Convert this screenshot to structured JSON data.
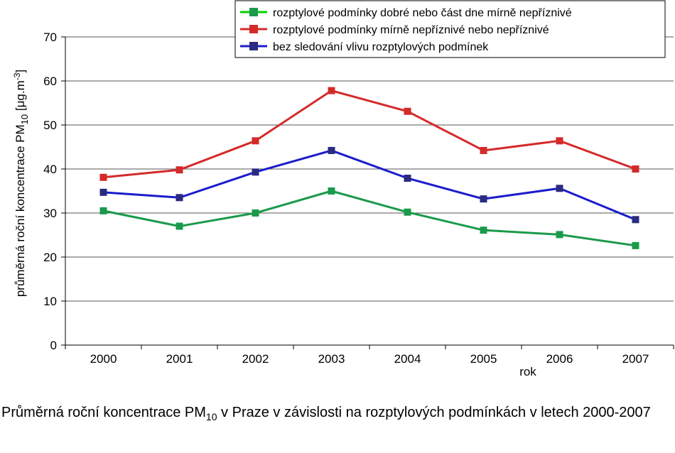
{
  "caption": {
    "before": "Průměrná roční koncentrace PM",
    "sub": "10",
    "after": " v Praze v závislosti na rozptylových podmínkách v letech 2000-2007"
  },
  "chart_data": {
    "type": "line",
    "categories": [
      "2000",
      "2001",
      "2002",
      "2003",
      "2004",
      "2005",
      "2006",
      "2007"
    ],
    "xlabel": "rok",
    "ylabel": {
      "main": "průměrná roční koncentrace PM",
      "sub": "10",
      "unit": " [μg.m",
      "sup": "-3",
      "close": "]"
    },
    "ylim": [
      0,
      70
    ],
    "yticks": [
      0,
      10,
      20,
      30,
      40,
      50,
      60,
      70
    ],
    "grid": true,
    "legend_position": "top-right",
    "series": [
      {
        "name": "rozptylové podmínky dobré nebo část dne mírně nepříznivé",
        "color": "#1a9a4a",
        "legend_color": "#00d000",
        "marker_color": "#1a9a4a",
        "values": [
          30.5,
          27.0,
          30.0,
          35.0,
          30.2,
          26.1,
          25.1,
          22.6
        ]
      },
      {
        "name": "rozptylové podmínky mírně nepříznivé nebo nepříznivé",
        "color": "#d42a2a",
        "legend_color": "#d42a2a",
        "marker_color": "#d42a2a",
        "values": [
          38.1,
          39.8,
          46.4,
          57.8,
          53.1,
          44.2,
          46.4,
          40.0
        ]
      },
      {
        "name": "bez sledování vlivu rozptylových podmínek",
        "color": "#1c1ccc",
        "legend_color": "#1c1ccc",
        "marker_color": "#2a2a80",
        "values": [
          34.7,
          33.5,
          39.3,
          44.2,
          37.9,
          33.2,
          35.6,
          28.5
        ]
      }
    ]
  }
}
